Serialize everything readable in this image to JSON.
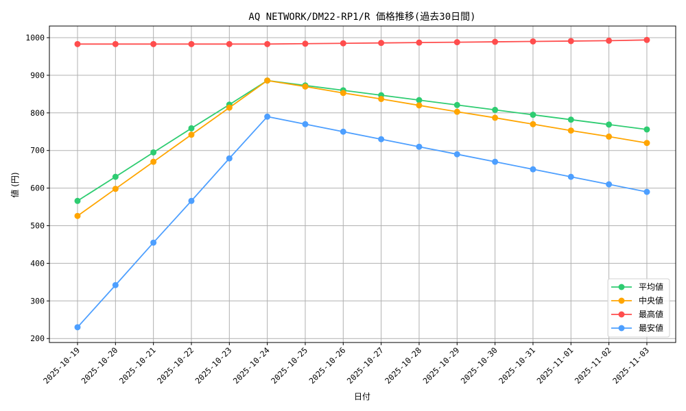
{
  "chart_data": {
    "type": "line",
    "title": "AQ NETWORK/DM22-RP1/R 価格推移(過去30日間)",
    "xlabel": "日付",
    "ylabel": "値 (円)",
    "categories": [
      "2025-10-19",
      "2025-10-20",
      "2025-10-21",
      "2025-10-22",
      "2025-10-23",
      "2025-10-24",
      "2025-10-25",
      "2025-10-26",
      "2025-10-27",
      "2025-10-28",
      "2025-10-29",
      "2025-10-30",
      "2025-10-31",
      "2025-11-01",
      "2025-11-02",
      "2025-11-03"
    ],
    "series": [
      {
        "name": "平均値",
        "color": "#2ecc71",
        "values": [
          566,
          630,
          695,
          759,
          822,
          886,
          873,
          860,
          847,
          834,
          821,
          808,
          795,
          782,
          769,
          756
        ]
      },
      {
        "name": "中央値",
        "color": "#ffa500",
        "values": [
          526,
          598,
          670,
          742,
          814,
          886,
          870,
          853,
          837,
          820,
          803,
          787,
          770,
          753,
          737,
          720
        ]
      },
      {
        "name": "最高値",
        "color": "#ff4d4d",
        "values": [
          983,
          983,
          983,
          983,
          983,
          983,
          984,
          985,
          986,
          987,
          988,
          989,
          990,
          991,
          992,
          994
        ]
      },
      {
        "name": "最安値",
        "color": "#4d9fff",
        "values": [
          230,
          342,
          455,
          566,
          679,
          790,
          770,
          750,
          730,
          710,
          690,
          670,
          650,
          630,
          610,
          590
        ]
      }
    ],
    "yticks": [
      200,
      300,
      400,
      500,
      600,
      700,
      800,
      900,
      1000
    ],
    "ylim": [
      194,
      1032
    ],
    "grid": true,
    "legend_position": "lower right"
  }
}
